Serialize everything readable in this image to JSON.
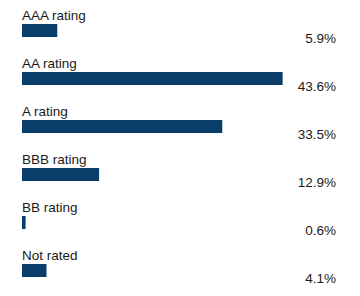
{
  "chart_data": {
    "type": "bar",
    "orientation": "horizontal",
    "categories": [
      "AAA rating",
      "AA rating",
      "A rating",
      "BBB rating",
      "BB rating",
      "Not rated"
    ],
    "values": [
      5.9,
      43.6,
      33.5,
      12.9,
      0.6,
      4.1
    ],
    "value_labels": [
      "5.9%",
      "43.6%",
      "33.5%",
      "12.9%",
      "0.6%",
      "4.1%"
    ],
    "color": "#0b3d6b",
    "xlim": [
      0,
      45
    ],
    "data_labels": true,
    "tick_labels": "y",
    "grid": false
  }
}
